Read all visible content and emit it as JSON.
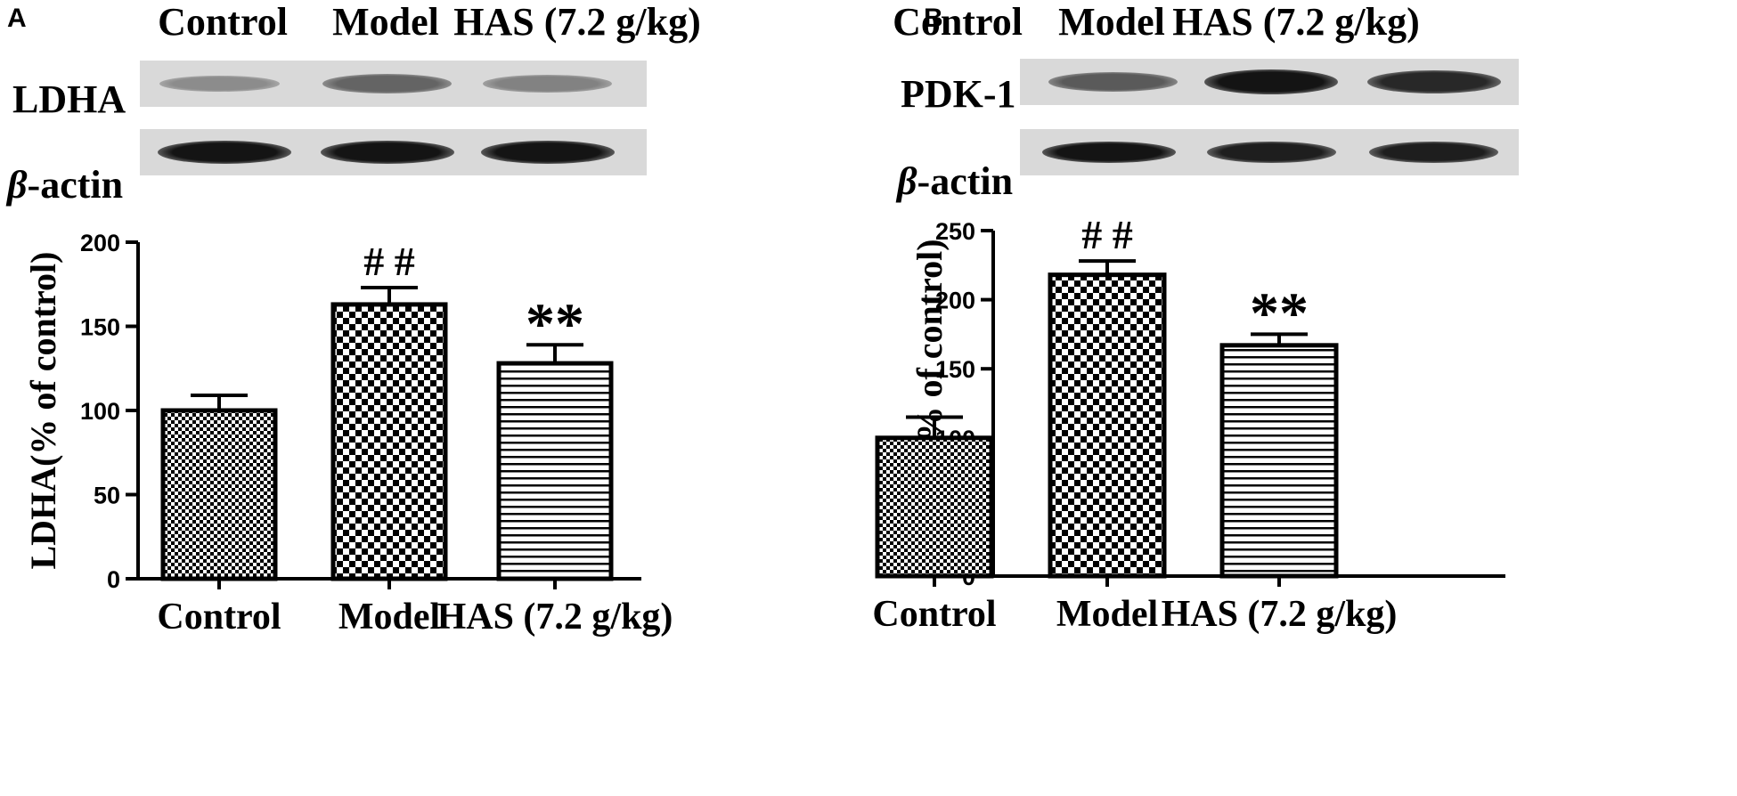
{
  "panels": [
    {
      "letter": "A",
      "blot": {
        "lanes": [
          "Control",
          "Model",
          "HAS (7.2 g/kg)"
        ],
        "rows": [
          {
            "label": "LDHA",
            "italic_prefix": "",
            "band_darkness": [
              0.35,
              0.55,
              0.4
            ]
          },
          {
            "label": "-actin",
            "italic_prefix": "β",
            "band_darkness": [
              0.95,
              0.95,
              0.95
            ]
          }
        ]
      },
      "chart_data": {
        "type": "bar",
        "categories": [
          "Control",
          "Model",
          "HAS (7.2 g/kg)"
        ],
        "values": [
          100,
          163,
          128
        ],
        "errors": [
          9,
          10,
          11
        ],
        "annotations": [
          "",
          "# #",
          "**"
        ],
        "patterns": [
          "fine-check",
          "coarse-check",
          "horizontal-lines"
        ],
        "ylabel": "LDHA(% of control)",
        "ylim": [
          0,
          200
        ],
        "yticks": [
          0,
          50,
          100,
          150,
          200
        ]
      }
    },
    {
      "letter": "B",
      "blot": {
        "lanes": [
          "Control",
          "Model",
          "HAS (7.2 g/kg)"
        ],
        "rows": [
          {
            "label": "PDK-1",
            "italic_prefix": "",
            "band_darkness": [
              0.6,
              0.95,
              0.85
            ]
          },
          {
            "label": "-actin",
            "italic_prefix": "β",
            "band_darkness": [
              0.95,
              0.9,
              0.9
            ]
          }
        ]
      },
      "chart_data": {
        "type": "bar",
        "categories": [
          "Control",
          "Model",
          "HAS (7.2 g/kg)"
        ],
        "values": [
          100,
          218,
          167
        ],
        "errors": [
          15,
          10,
          8
        ],
        "annotations": [
          "",
          "# #",
          "**"
        ],
        "patterns": [
          "fine-check",
          "coarse-check",
          "horizontal-lines"
        ],
        "ylabel": "PDK-1 (% of control)",
        "ylim": [
          0,
          250
        ],
        "yticks": [
          0,
          50,
          100,
          150,
          200,
          250
        ]
      }
    }
  ]
}
